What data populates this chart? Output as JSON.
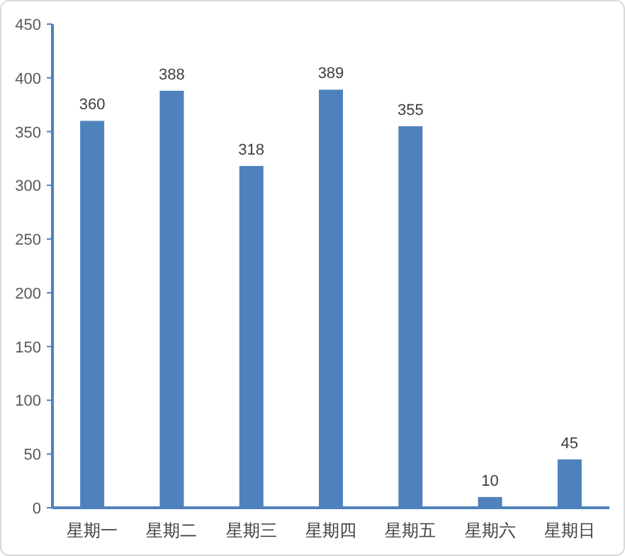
{
  "chart_data": {
    "type": "bar",
    "categories": [
      "星期一",
      "星期二",
      "星期三",
      "星期四",
      "星期五",
      "星期六",
      "星期日"
    ],
    "values": [
      360,
      388,
      318,
      389,
      355,
      10,
      45
    ],
    "color": "#4f81bd",
    "ylim": [
      0,
      450
    ],
    "yticks": [
      0,
      50,
      100,
      150,
      200,
      250,
      300,
      350,
      400,
      450
    ],
    "data_labels": true,
    "grid": false
  }
}
